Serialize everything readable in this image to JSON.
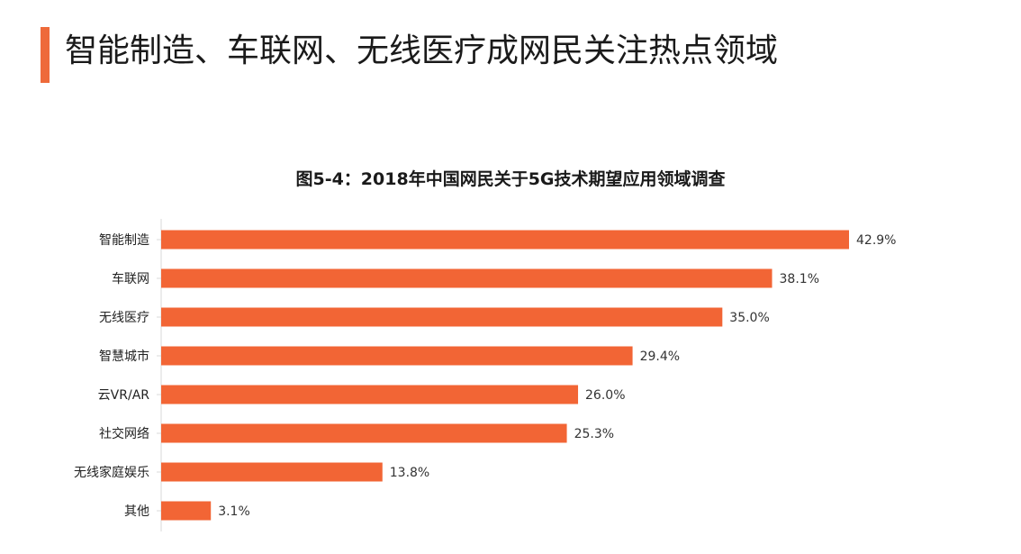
{
  "header": {
    "title": "智能制造、车联网、无线医疗成网民关注热点领域"
  },
  "colors": {
    "accent": "#EE6A3A",
    "bar": "#F26535",
    "axis": "#D9D9D9"
  },
  "chart_data": {
    "type": "bar",
    "orientation": "horizontal",
    "title": "图5-4：2018年中国网民关于5G技术期望应用领域调查",
    "categories": [
      "智能制造",
      "车联网",
      "无线医疗",
      "智慧城市",
      "云VR/AR",
      "社交网络",
      "无线家庭娱乐",
      "其他"
    ],
    "values": [
      42.9,
      38.1,
      35.0,
      29.4,
      26.0,
      25.3,
      13.8,
      3.1
    ],
    "value_labels": [
      "42.9%",
      "38.1%",
      "35.0%",
      "29.4%",
      "26.0%",
      "25.3%",
      "13.8%",
      "3.1%"
    ],
    "unit": "%",
    "xlim": [
      0,
      45
    ],
    "grid": false,
    "legend": "none"
  }
}
